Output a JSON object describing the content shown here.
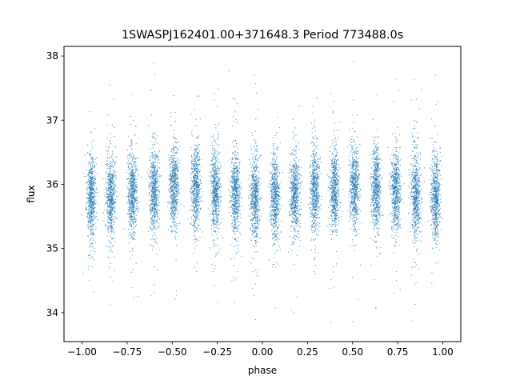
{
  "chart_data": {
    "type": "scatter",
    "title": "1SWASPJ162401.00+371648.3 Period 773488.0s",
    "xlabel": "phase",
    "ylabel": "flux",
    "xlim": [
      -1.1,
      1.1
    ],
    "ylim": [
      33.55,
      38.15
    ],
    "x_ticks": [
      -1.0,
      -0.75,
      -0.5,
      -0.25,
      0.0,
      0.25,
      0.5,
      0.75,
      1.0
    ],
    "x_tick_labels": [
      "−1.00",
      "−0.75",
      "−0.50",
      "−0.25",
      "0.00",
      "0.25",
      "0.50",
      "0.75",
      "1.00"
    ],
    "y_ticks": [
      34,
      35,
      36,
      37,
      38
    ],
    "y_tick_labels": [
      "34",
      "35",
      "36",
      "37",
      "38"
    ],
    "grid": false,
    "legend": "none",
    "marker_color": "#1f77b4",
    "series": [
      {
        "clusters": [
          {
            "phase": -0.95,
            "mean_flux": 35.8
          },
          {
            "phase": -0.84,
            "mean_flux": 35.8
          },
          {
            "phase": -0.72,
            "mean_flux": 35.85
          },
          {
            "phase": -0.6,
            "mean_flux": 35.9
          },
          {
            "phase": -0.49,
            "mean_flux": 35.95
          },
          {
            "phase": -0.37,
            "mean_flux": 35.95
          },
          {
            "phase": -0.26,
            "mean_flux": 35.9
          },
          {
            "phase": -0.15,
            "mean_flux": 35.85
          },
          {
            "phase": -0.04,
            "mean_flux": 35.8
          },
          {
            "phase": 0.07,
            "mean_flux": 35.8
          },
          {
            "phase": 0.18,
            "mean_flux": 35.85
          },
          {
            "phase": 0.29,
            "mean_flux": 35.9
          },
          {
            "phase": 0.4,
            "mean_flux": 35.9
          },
          {
            "phase": 0.51,
            "mean_flux": 35.95
          },
          {
            "phase": 0.63,
            "mean_flux": 35.95
          },
          {
            "phase": 0.74,
            "mean_flux": 35.9
          },
          {
            "phase": 0.85,
            "mean_flux": 35.85
          },
          {
            "phase": 0.96,
            "mean_flux": 35.8
          }
        ],
        "flux_spread_sd": 0.32,
        "flux_range": [
          33.75,
          37.95
        ]
      }
    ]
  }
}
